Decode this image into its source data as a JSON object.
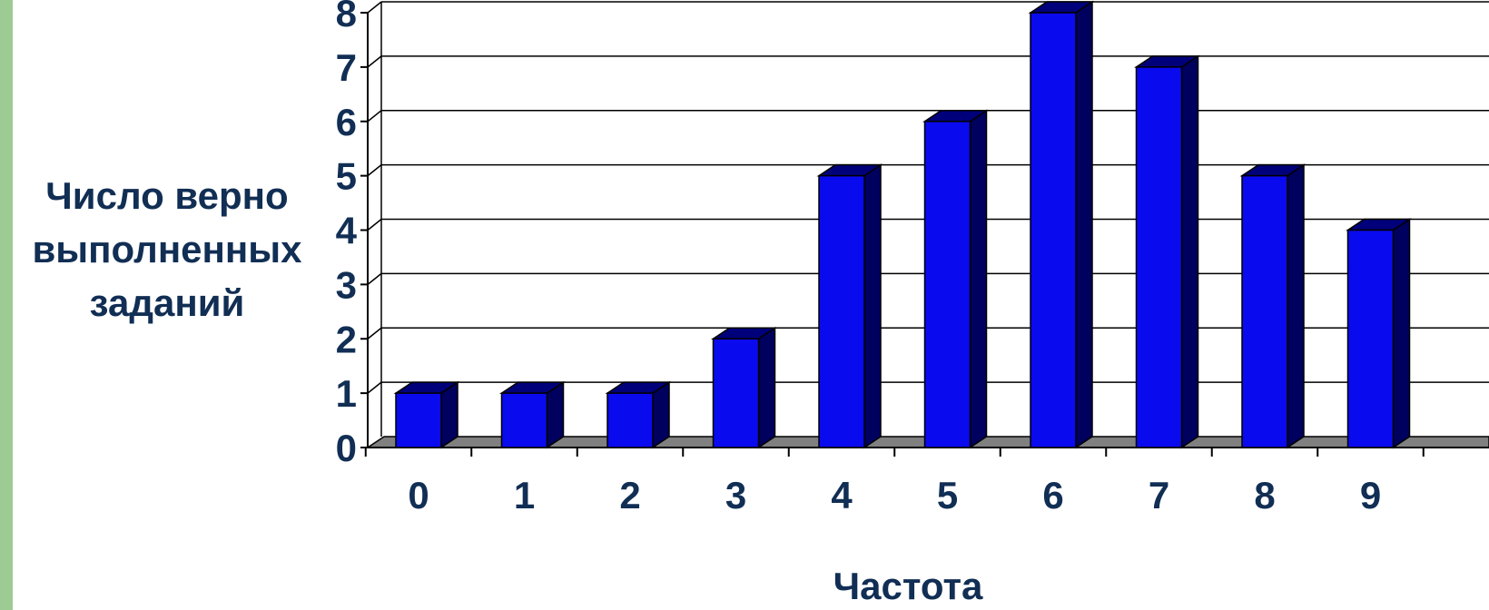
{
  "chart_data": {
    "type": "bar",
    "title": "",
    "xlabel": "Частота",
    "ylabel": "Число верно выполненных заданий",
    "categories": [
      "0",
      "1",
      "2",
      "3",
      "4",
      "5",
      "6",
      "7",
      "8",
      "9"
    ],
    "values": [
      1,
      1,
      1,
      2,
      5,
      6,
      8,
      7,
      5,
      4
    ],
    "ylim": [
      0,
      8
    ],
    "yticks": [
      "0",
      "1",
      "2",
      "3",
      "4",
      "5",
      "6",
      "7",
      "8"
    ],
    "grid": true,
    "legend": "none",
    "colors": {
      "bar_front": "#0a0aee",
      "bar_side": "#00005e",
      "bar_top": "#00007a",
      "floor": "#808080",
      "text": "#112e54",
      "side_strip": "#9ccb94"
    }
  }
}
